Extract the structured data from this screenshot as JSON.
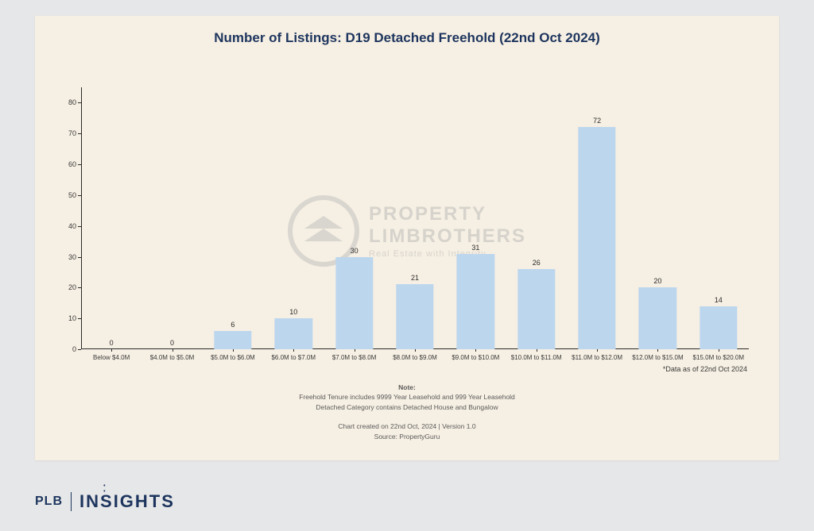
{
  "chart": {
    "type": "bar",
    "title": "Number of Listings: D19 Detached Freehold (22nd Oct 2024)",
    "title_color": "#1d355e",
    "title_fontsize": 17,
    "categories": [
      "Below $4.0M",
      "$4.0M to $5.0M",
      "$5.0M to $6.0M",
      "$6.0M to $7.0M",
      "$7.0M to $8.0M",
      "$8.0M to $9.0M",
      "$9.0M to $10.0M",
      "$10.0M to $11.0M",
      "$11.0M to $12.0M",
      "$12.0M to $15.0M",
      "$15.0M to $20.0M"
    ],
    "values": [
      0,
      0,
      6,
      10,
      30,
      21,
      31,
      26,
      72,
      20,
      14
    ],
    "bar_color": "#bcd6ee",
    "bar_width_ratio": 0.62,
    "ylim": [
      0,
      85
    ],
    "yticks": [
      0,
      10,
      20,
      30,
      40,
      50,
      60,
      70,
      80
    ],
    "axis_color": "#2b2b2b",
    "panel_background": "#f6efe3",
    "page_background": "#e6e7e8",
    "tick_label_fontsize": 9,
    "cat_label_fontsize": 8,
    "value_label_fontsize": 9,
    "footnote_right": "*Data as of 22nd Oct 2024",
    "notes": {
      "head": "Note:",
      "line1": "Freehold Tenure includes 9999 Year Leasehold and 999 Year Leasehold",
      "line2": "Detached Category contains Detached House and Bungalow",
      "line3": "Chart created on 22nd Oct, 2024 | Version 1.0",
      "line4": "Source: PropertyGuru"
    }
  },
  "watermark": {
    "line1": "PROPERTY",
    "line2": "LIMBROTHERS",
    "line3": "Real Estate with Integrity"
  },
  "brand": {
    "left": "PLB",
    "right_pre": "IN",
    "right_mid": "S",
    "right_post": "IGHTS"
  }
}
